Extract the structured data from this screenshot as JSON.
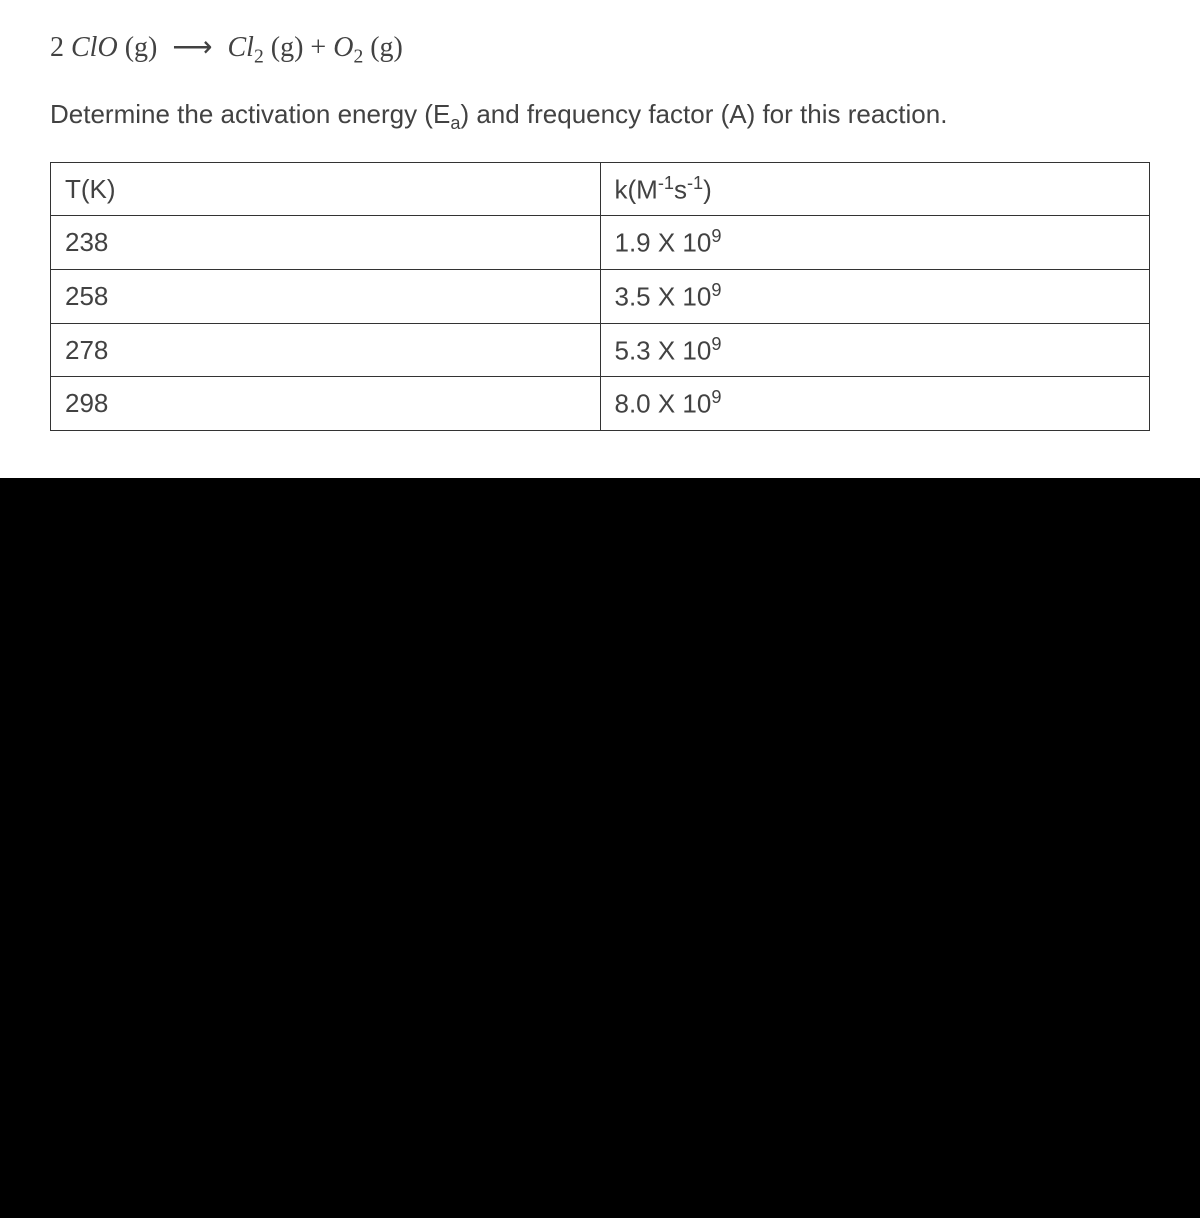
{
  "equation": {
    "lhs_coeff": "2",
    "lhs_species": "ClO",
    "lhs_state": "(g)",
    "arrow": "⟶",
    "rhs1_species": "Cl",
    "rhs1_sub": "2",
    "rhs1_state": "(g)",
    "plus": "+",
    "rhs2_species": "O",
    "rhs2_sub": "2",
    "rhs2_state": "(g)"
  },
  "prompt": {
    "pre": "Determine the activation energy (E",
    "sub": "a",
    "post": ") and frequency factor (A) for this reaction."
  },
  "table": {
    "header": {
      "col1": "T(K)",
      "col2_pre": "k(M",
      "col2_sup1": "-1",
      "col2_mid": "s",
      "col2_sup2": "-1",
      "col2_post": ")"
    },
    "rows": [
      {
        "t": "238",
        "k_base": "1.9 X 10",
        "k_exp": "9"
      },
      {
        "t": "258",
        "k_base": "3.5 X 10",
        "k_exp": "9"
      },
      {
        "t": "278",
        "k_base": "5.3 X 10",
        "k_exp": "9"
      },
      {
        "t": "298",
        "k_base": "8.0 X 10",
        "k_exp": "9"
      }
    ]
  },
  "colors": {
    "text": "#424242",
    "border": "#333333",
    "background": "#ffffff",
    "mask": "#000000"
  }
}
